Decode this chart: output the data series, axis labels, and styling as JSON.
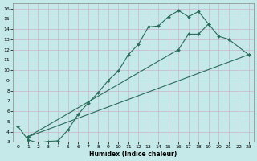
{
  "xlabel": "Humidex (Indice chaleur)",
  "bg_color": "#c5e8e8",
  "grid_color": "#b0d5d5",
  "line_color": "#2a6b5a",
  "xlim": [
    -0.5,
    23.5
  ],
  "ylim": [
    3,
    16.5
  ],
  "xticks": [
    0,
    1,
    2,
    3,
    4,
    5,
    6,
    7,
    8,
    9,
    10,
    11,
    12,
    13,
    14,
    15,
    16,
    17,
    18,
    19,
    20,
    21,
    22,
    23
  ],
  "yticks": [
    3,
    4,
    5,
    6,
    7,
    8,
    9,
    10,
    11,
    12,
    13,
    14,
    15,
    16
  ],
  "line1_x": [
    0,
    1,
    2,
    3,
    4,
    5,
    6,
    7,
    8,
    9,
    10,
    11,
    12,
    13,
    14,
    15,
    16,
    17,
    18,
    19
  ],
  "line1_y": [
    4.5,
    3.2,
    2.9,
    3.05,
    3.1,
    4.2,
    5.7,
    6.8,
    7.8,
    9.0,
    9.9,
    11.5,
    12.5,
    14.2,
    14.3,
    15.2,
    15.8,
    15.2,
    15.7,
    14.5
  ],
  "line2_x": [
    1,
    23
  ],
  "line2_y": [
    3.5,
    11.5
  ],
  "line3_x": [
    1,
    16,
    17,
    18,
    19,
    20,
    21,
    23
  ],
  "line3_y": [
    3.5,
    12.0,
    13.5,
    13.5,
    14.5,
    13.3,
    13.0,
    11.5
  ]
}
